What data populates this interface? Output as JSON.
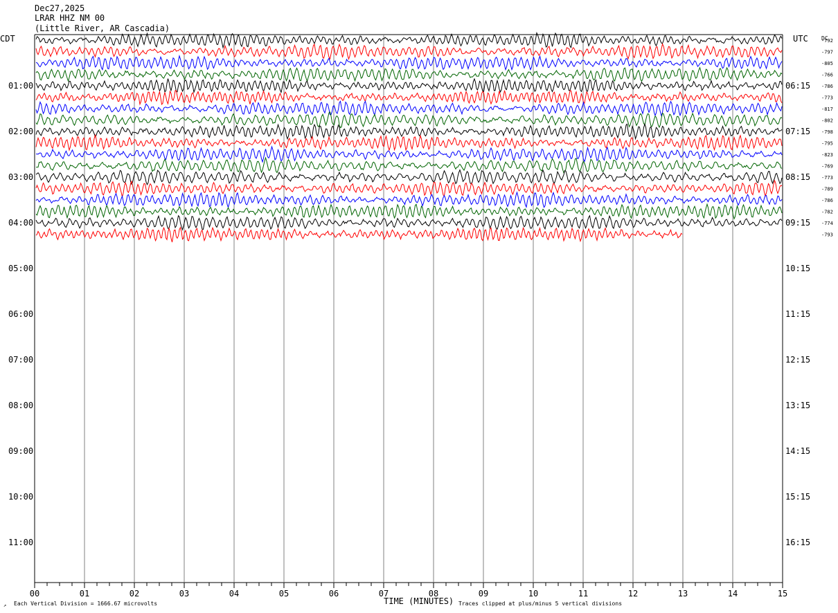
{
  "header": {
    "date": "Dec27,2025",
    "station": "LRAR HHZ NM 00",
    "location": "(Little River, AR Cascadia)"
  },
  "axes": {
    "left_tz": "CDT",
    "right_tz": "UTC",
    "dc_label": "DC",
    "xlabel": "TIME (MINUTES)"
  },
  "footer": {
    "scale_note": "Each Vertical Division = 1666.67 microvolts",
    "clip_note": "Traces clipped at plus/minus 5 vertical divisions"
  },
  "chart_data": {
    "type": "line",
    "title": "LRAR HHZ NM 00",
    "subtitle": "(Little River, AR Cascadia)",
    "xlabel": "TIME (MINUTES)",
    "xlim": [
      0,
      15
    ],
    "x_ticks": [
      "00",
      "01",
      "02",
      "03",
      "04",
      "05",
      "06",
      "07",
      "08",
      "09",
      "10",
      "11",
      "12",
      "13",
      "14",
      "15"
    ],
    "rows_per_hour": 4,
    "minutes_per_row": 15,
    "trace_colors": [
      "#000000",
      "#ff0000",
      "#0000ff",
      "#006400"
    ],
    "hour_labels_left": [
      "01:00",
      "02:00",
      "03:00",
      "04:00",
      "05:00",
      "06:00",
      "07:00",
      "08:00",
      "09:00",
      "10:00",
      "11:00"
    ],
    "hour_labels_right": [
      "06:15",
      "07:15",
      "08:15",
      "09:15",
      "10:15",
      "11:15",
      "12:15",
      "13:15",
      "14:15",
      "15:15",
      "16:15"
    ],
    "dc_offsets": [
      "-792",
      "-797",
      "-805",
      "-766",
      "-786",
      "-773",
      "-817",
      "-802",
      "-798",
      "-795",
      "-823",
      "-769",
      "-773",
      "-789",
      "-786",
      "-782",
      "-774",
      "-793"
    ],
    "last_row_end_minute": 13,
    "grid": true
  }
}
